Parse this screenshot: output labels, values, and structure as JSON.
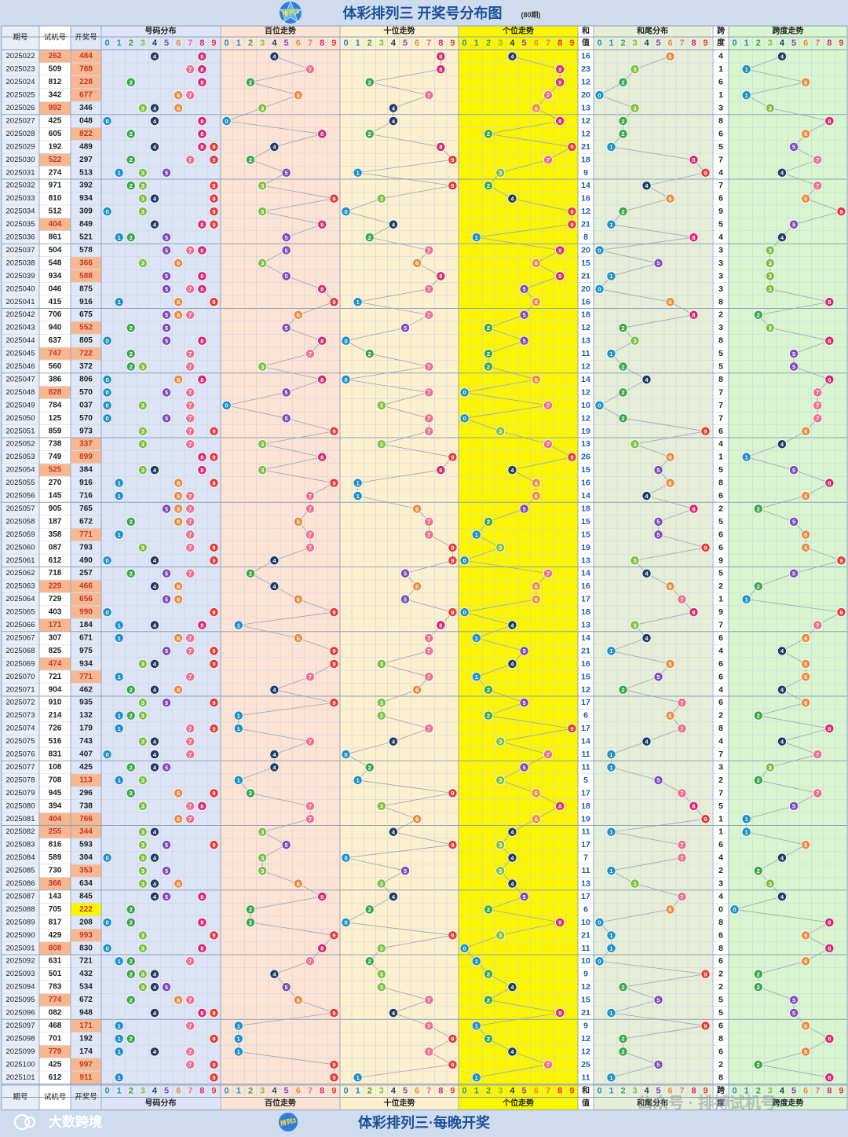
{
  "header": {
    "logo_text": "排列3",
    "title": "体彩排列三  开奖号分布图",
    "subtitle": "(80期)"
  },
  "columns": {
    "issue": "期号",
    "trial": "试机号",
    "draw": "开奖号",
    "distribution": "号码分布",
    "hundreds": "百位走势",
    "tens": "十位走势",
    "units": "个位走势",
    "sum_top": "和",
    "sum_bottom": "值",
    "sum_tail": "和尾分布",
    "span_top": "跨",
    "span_bottom": "度",
    "span_trend": "跨度走势",
    "digits": [
      "0",
      "1",
      "2",
      "3",
      "4",
      "5",
      "6",
      "7",
      "8",
      "9"
    ]
  },
  "footer": {
    "brand": "大数跨境",
    "slogan": "体彩排列三·每晚开奖",
    "logo_text": "排列3",
    "watermark": "公众号 · 排搏试机号"
  },
  "colors": {
    "digit": [
      "#1e90c8",
      "#1e90c8",
      "#3aa64a",
      "#7dc043",
      "#1f3a64",
      "#7d4ab8",
      "#ee8a3c",
      "#ef6f8f",
      "#d6266e",
      "#e53935"
    ],
    "header_bg": "#cfdcee",
    "title": "#1b4f9a",
    "distribution_bg": "#dde4f6",
    "hundreds_bg": "#fde3d4",
    "tens_bg": "#fdf0cf",
    "units_bg": "#fbf600",
    "sum_tail_bg": "#e6eed8",
    "span_bg": "#d9f5cf",
    "highlight_bg": "#f6b791",
    "highlight_yellow": "#fbf600"
  },
  "chart_data": {
    "type": "table",
    "title": "体彩排列三  开奖号分布图",
    "rows": [
      {
        "issue": "2025022",
        "trial": "262",
        "draw": "484",
        "sum": 16,
        "span": 4
      },
      {
        "issue": "2025023",
        "trial": "509",
        "draw": "788",
        "sum": 23,
        "span": 1
      },
      {
        "issue": "2025024",
        "trial": "812",
        "draw": "228",
        "sum": 12,
        "span": 6
      },
      {
        "issue": "2025025",
        "trial": "342",
        "draw": "677",
        "sum": 20,
        "span": 1
      },
      {
        "issue": "2025026",
        "trial": "992",
        "draw": "346",
        "sum": 13,
        "span": 3
      },
      {
        "issue": "2025027",
        "trial": "425",
        "draw": "048",
        "sum": 12,
        "span": 8
      },
      {
        "issue": "2025028",
        "trial": "605",
        "draw": "822",
        "sum": 12,
        "span": 6
      },
      {
        "issue": "2025029",
        "trial": "192",
        "draw": "489",
        "sum": 21,
        "span": 5
      },
      {
        "issue": "2025030",
        "trial": "522",
        "draw": "297",
        "sum": 18,
        "span": 7
      },
      {
        "issue": "2025031",
        "trial": "274",
        "draw": "513",
        "sum": 9,
        "span": 4
      },
      {
        "issue": "2025032",
        "trial": "971",
        "draw": "392",
        "sum": 14,
        "span": 7
      },
      {
        "issue": "2025033",
        "trial": "810",
        "draw": "934",
        "sum": 16,
        "span": 6
      },
      {
        "issue": "2025034",
        "trial": "512",
        "draw": "309",
        "sum": 12,
        "span": 9
      },
      {
        "issue": "2025035",
        "trial": "404",
        "draw": "849",
        "sum": 21,
        "span": 5
      },
      {
        "issue": "2025036",
        "trial": "861",
        "draw": "521",
        "sum": 8,
        "span": 4
      },
      {
        "issue": "2025037",
        "trial": "504",
        "draw": "578",
        "sum": 20,
        "span": 3
      },
      {
        "issue": "2025038",
        "trial": "548",
        "draw": "366",
        "sum": 15,
        "span": 3
      },
      {
        "issue": "2025039",
        "trial": "934",
        "draw": "588",
        "sum": 21,
        "span": 3
      },
      {
        "issue": "2025040",
        "trial": "046",
        "draw": "875",
        "sum": 20,
        "span": 3
      },
      {
        "issue": "2025041",
        "trial": "415",
        "draw": "916",
        "sum": 16,
        "span": 8
      },
      {
        "issue": "2025042",
        "trial": "706",
        "draw": "675",
        "sum": 18,
        "span": 2
      },
      {
        "issue": "2025043",
        "trial": "940",
        "draw": "552",
        "sum": 12,
        "span": 3
      },
      {
        "issue": "2025044",
        "trial": "637",
        "draw": "805",
        "sum": 13,
        "span": 8
      },
      {
        "issue": "2025045",
        "trial": "747",
        "draw": "722",
        "sum": 11,
        "span": 5
      },
      {
        "issue": "2025046",
        "trial": "560",
        "draw": "372",
        "sum": 12,
        "span": 5
      },
      {
        "issue": "2025047",
        "trial": "386",
        "draw": "806",
        "sum": 14,
        "span": 8
      },
      {
        "issue": "2025048",
        "trial": "828",
        "draw": "570",
        "sum": 12,
        "span": 7
      },
      {
        "issue": "2025049",
        "trial": "784",
        "draw": "037",
        "sum": 10,
        "span": 7
      },
      {
        "issue": "2025050",
        "trial": "125",
        "draw": "570",
        "sum": 12,
        "span": 7
      },
      {
        "issue": "2025051",
        "trial": "859",
        "draw": "973",
        "sum": 19,
        "span": 6
      },
      {
        "issue": "2025052",
        "trial": "738",
        "draw": "337",
        "sum": 13,
        "span": 4
      },
      {
        "issue": "2025053",
        "trial": "749",
        "draw": "899",
        "sum": 26,
        "span": 1
      },
      {
        "issue": "2025054",
        "trial": "525",
        "draw": "384",
        "sum": 15,
        "span": 5
      },
      {
        "issue": "2025055",
        "trial": "270",
        "draw": "916",
        "sum": 16,
        "span": 8
      },
      {
        "issue": "2025056",
        "trial": "145",
        "draw": "716",
        "sum": 14,
        "span": 6
      },
      {
        "issue": "2025057",
        "trial": "905",
        "draw": "765",
        "sum": 18,
        "span": 2
      },
      {
        "issue": "2025058",
        "trial": "187",
        "draw": "672",
        "sum": 15,
        "span": 5
      },
      {
        "issue": "2025059",
        "trial": "358",
        "draw": "771",
        "sum": 15,
        "span": 6
      },
      {
        "issue": "2025060",
        "trial": "087",
        "draw": "793",
        "sum": 19,
        "span": 6
      },
      {
        "issue": "2025061",
        "trial": "612",
        "draw": "490",
        "sum": 13,
        "span": 9
      },
      {
        "issue": "2025062",
        "trial": "718",
        "draw": "257",
        "sum": 14,
        "span": 5
      },
      {
        "issue": "2025063",
        "trial": "229",
        "draw": "466",
        "sum": 16,
        "span": 2
      },
      {
        "issue": "2025064",
        "trial": "729",
        "draw": "656",
        "sum": 17,
        "span": 1
      },
      {
        "issue": "2025065",
        "trial": "403",
        "draw": "990",
        "sum": 18,
        "span": 9
      },
      {
        "issue": "2025066",
        "trial": "171",
        "draw": "184",
        "sum": 13,
        "span": 7
      },
      {
        "issue": "2025067",
        "trial": "307",
        "draw": "671",
        "sum": 14,
        "span": 6
      },
      {
        "issue": "2025068",
        "trial": "825",
        "draw": "975",
        "sum": 21,
        "span": 4
      },
      {
        "issue": "2025069",
        "trial": "474",
        "draw": "934",
        "sum": 16,
        "span": 6
      },
      {
        "issue": "2025070",
        "trial": "721",
        "draw": "771",
        "sum": 15,
        "span": 6
      },
      {
        "issue": "2025071",
        "trial": "904",
        "draw": "462",
        "sum": 12,
        "span": 4
      },
      {
        "issue": "2025072",
        "trial": "910",
        "draw": "935",
        "sum": 17,
        "span": 6
      },
      {
        "issue": "2025073",
        "trial": "214",
        "draw": "132",
        "sum": 6,
        "span": 2
      },
      {
        "issue": "2025074",
        "trial": "726",
        "draw": "179",
        "sum": 17,
        "span": 8
      },
      {
        "issue": "2025075",
        "trial": "516",
        "draw": "743",
        "sum": 14,
        "span": 4
      },
      {
        "issue": "2025076",
        "trial": "831",
        "draw": "407",
        "sum": 11,
        "span": 7
      },
      {
        "issue": "2025077",
        "trial": "108",
        "draw": "425",
        "sum": 11,
        "span": 3
      },
      {
        "issue": "2025078",
        "trial": "708",
        "draw": "113",
        "sum": 5,
        "span": 2
      },
      {
        "issue": "2025079",
        "trial": "945",
        "draw": "296",
        "sum": 17,
        "span": 7
      },
      {
        "issue": "2025080",
        "trial": "394",
        "draw": "738",
        "sum": 18,
        "span": 5
      },
      {
        "issue": "2025081",
        "trial": "404",
        "draw": "766",
        "sum": 19,
        "span": 1
      },
      {
        "issue": "2025082",
        "trial": "255",
        "draw": "344",
        "sum": 11,
        "span": 1
      },
      {
        "issue": "2025083",
        "trial": "816",
        "draw": "593",
        "sum": 17,
        "span": 6
      },
      {
        "issue": "2025084",
        "trial": "589",
        "draw": "304",
        "sum": 7,
        "span": 4
      },
      {
        "issue": "2025085",
        "trial": "730",
        "draw": "353",
        "sum": 11,
        "span": 2
      },
      {
        "issue": "2025086",
        "trial": "366",
        "draw": "634",
        "sum": 13,
        "span": 3
      },
      {
        "issue": "2025087",
        "trial": "143",
        "draw": "845",
        "sum": 17,
        "span": 4
      },
      {
        "issue": "2025088",
        "trial": "705",
        "draw": "222",
        "sum": 6,
        "span": 0
      },
      {
        "issue": "2025089",
        "trial": "817",
        "draw": "208",
        "sum": 10,
        "span": 8
      },
      {
        "issue": "2025090",
        "trial": "429",
        "draw": "993",
        "sum": 21,
        "span": 6
      },
      {
        "issue": "2025091",
        "trial": "808",
        "draw": "830",
        "sum": 11,
        "span": 8
      },
      {
        "issue": "2025092",
        "trial": "631",
        "draw": "721",
        "sum": 10,
        "span": 6
      },
      {
        "issue": "2025093",
        "trial": "501",
        "draw": "432",
        "sum": 9,
        "span": 2
      },
      {
        "issue": "2025094",
        "trial": "783",
        "draw": "534",
        "sum": 12,
        "span": 2
      },
      {
        "issue": "2025095",
        "trial": "774",
        "draw": "672",
        "sum": 15,
        "span": 5
      },
      {
        "issue": "2025096",
        "trial": "082",
        "draw": "948",
        "sum": 21,
        "span": 5
      },
      {
        "issue": "2025097",
        "trial": "468",
        "draw": "171",
        "sum": 9,
        "span": 6
      },
      {
        "issue": "2025098",
        "trial": "701",
        "draw": "192",
        "sum": 12,
        "span": 8
      },
      {
        "issue": "2025099",
        "trial": "779",
        "draw": "174",
        "sum": 12,
        "span": 6
      },
      {
        "issue": "2025100",
        "trial": "425",
        "draw": "997",
        "sum": 25,
        "span": 2
      },
      {
        "issue": "2025101",
        "trial": "612",
        "draw": "911",
        "sum": 11,
        "span": 8
      }
    ]
  }
}
